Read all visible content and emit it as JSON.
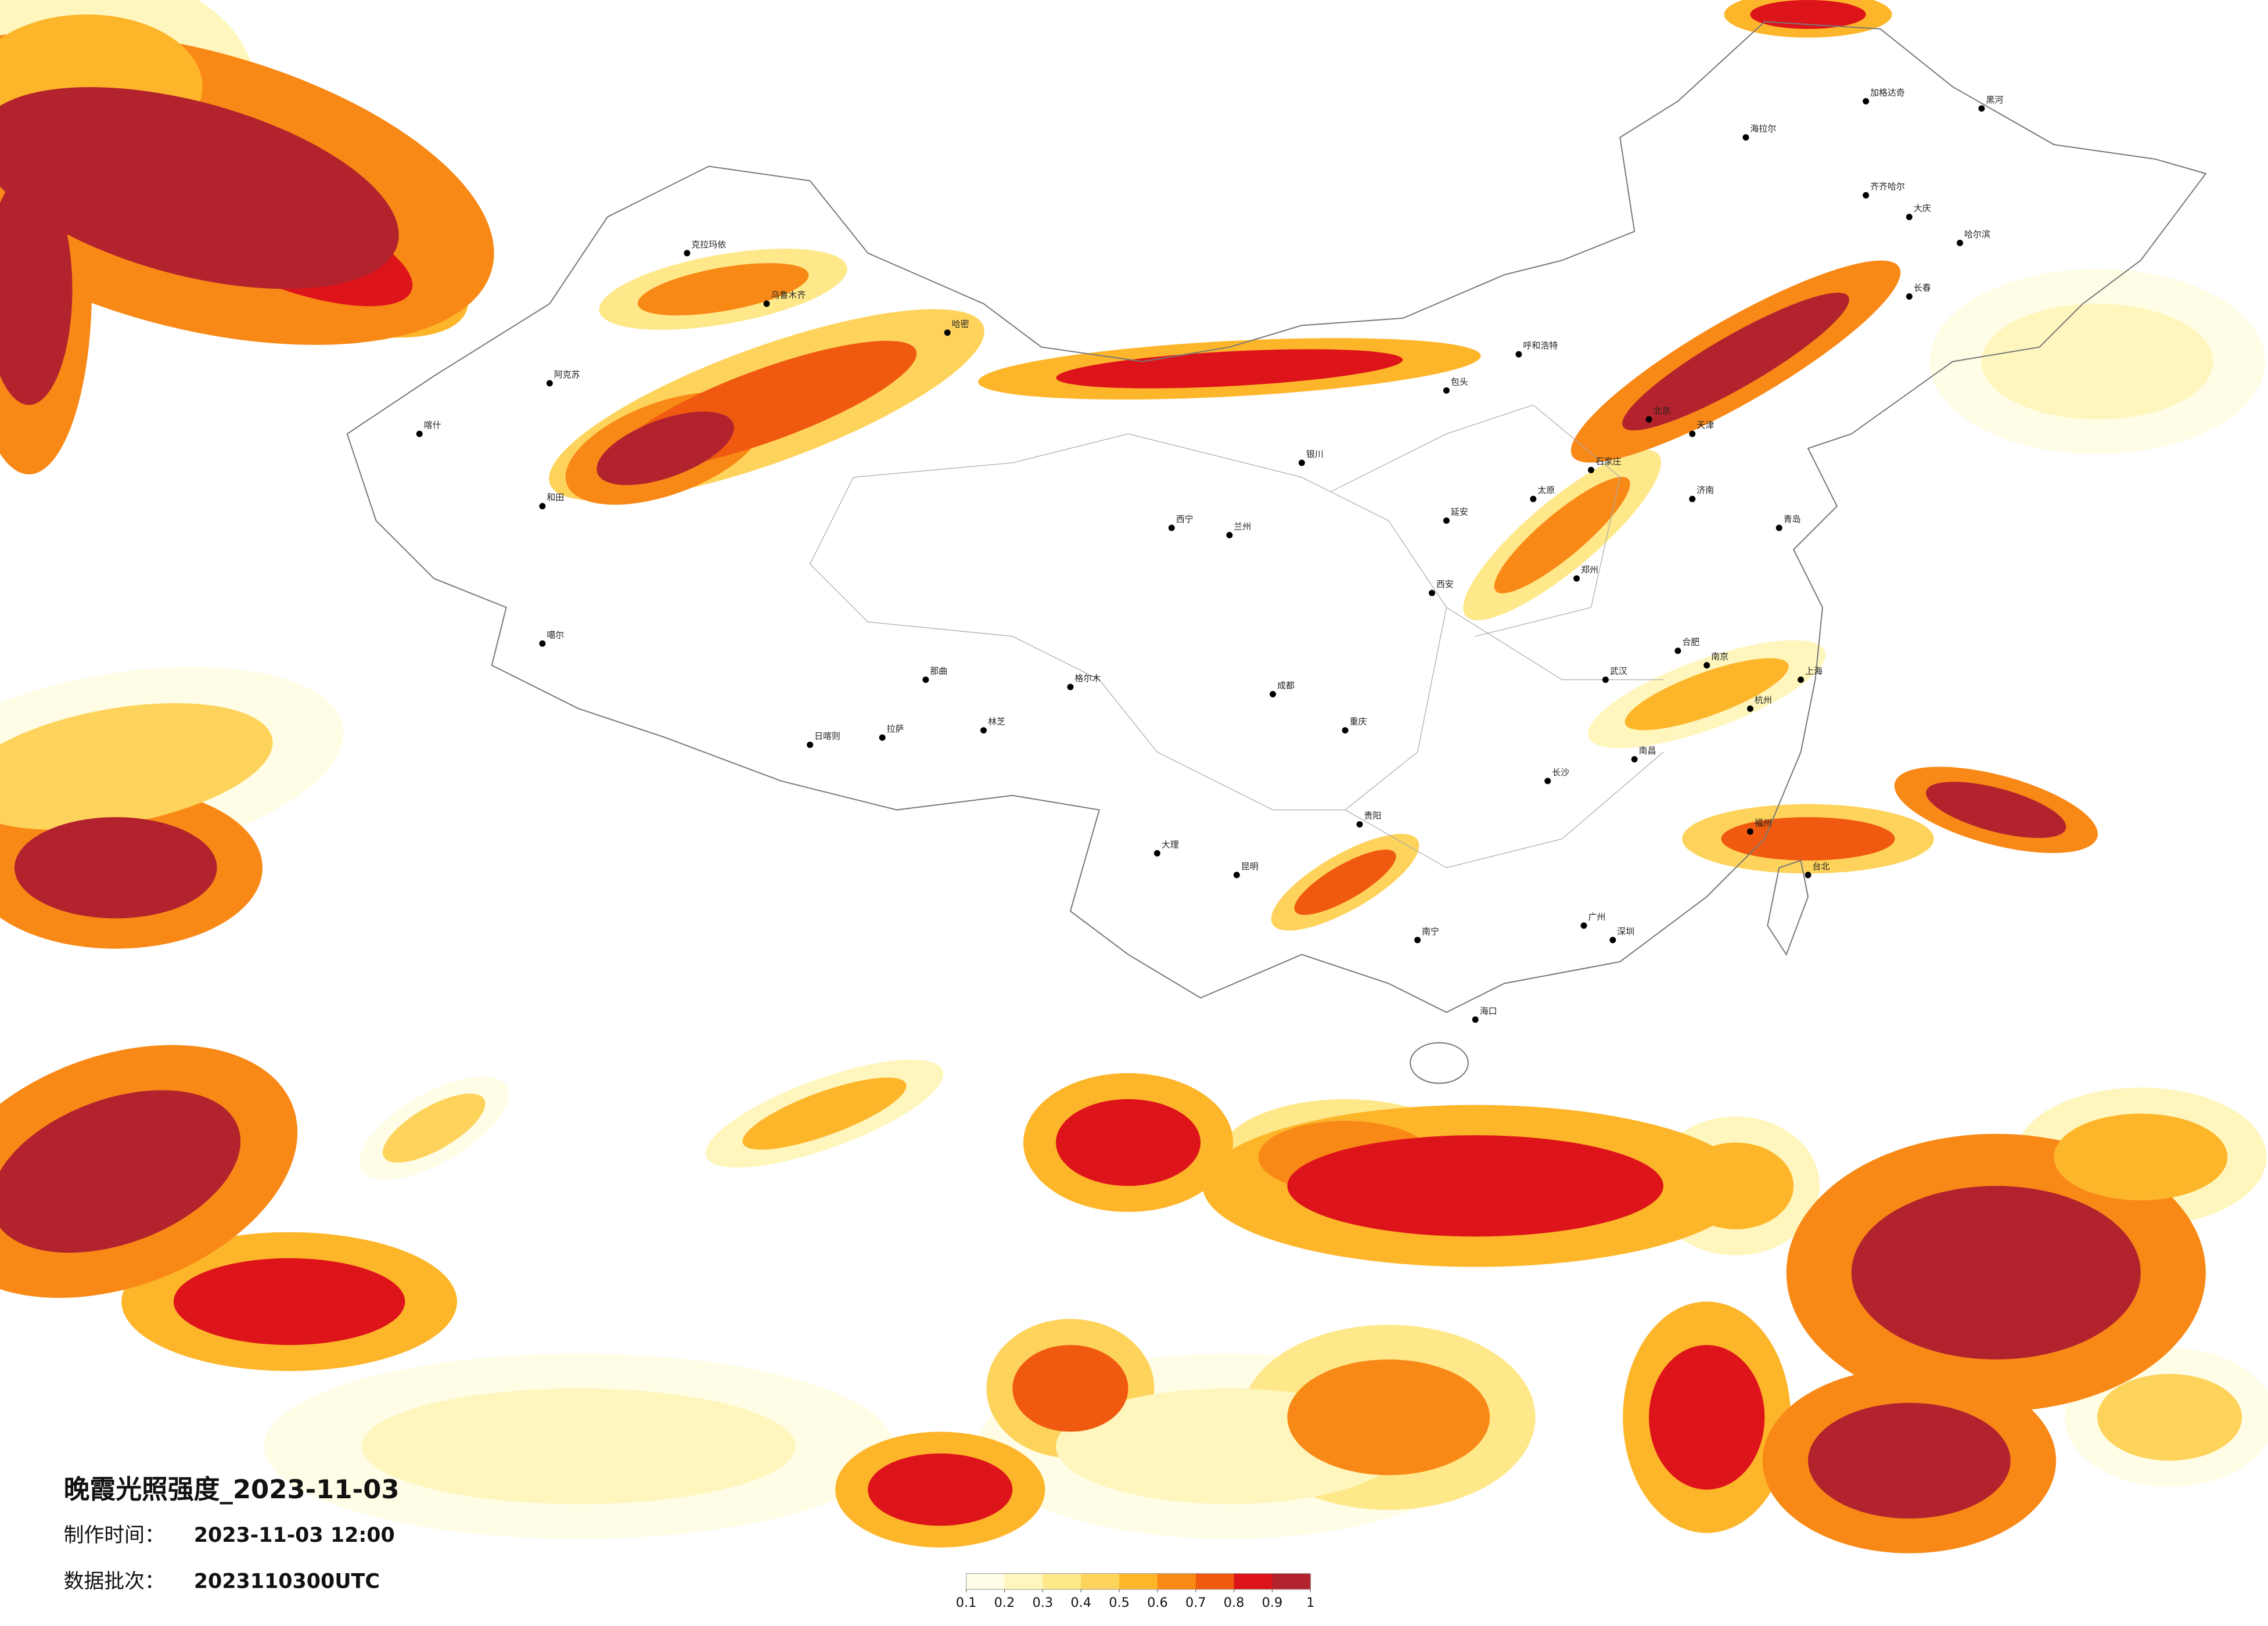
{
  "title": "晚霞光照强度_2023-11-03",
  "info": {
    "made_label": "制作时间：",
    "made_value": "2023-11-03 12:00",
    "batch_label": "数据批次：",
    "batch_value": "2023110300UTC"
  },
  "legend": {
    "colors": [
      "#fffde6",
      "#fff6bd",
      "#ffe88a",
      "#fed35b",
      "#fdb52a",
      "#f98917",
      "#f05a10",
      "#de141b",
      "#b3232d"
    ],
    "ticks": [
      0.1,
      0.2,
      0.3,
      0.4,
      0.5,
      0.6,
      0.7,
      0.8,
      0.9,
      1
    ]
  },
  "cities": [
    "海拉尔",
    "加格达奇",
    "黑河",
    "齐齐哈尔",
    "大庆",
    "哈尔滨",
    "长春",
    "北京",
    "天津",
    "石家庄",
    "太原",
    "呼和浩特",
    "包头",
    "银川",
    "兰州",
    "西宁",
    "拉萨",
    "日喀则",
    "西安",
    "郑州",
    "济南",
    "青岛",
    "南京",
    "上海",
    "杭州",
    "武汉",
    "长沙",
    "南昌",
    "福州",
    "台北",
    "广州",
    "深圳",
    "南宁",
    "海口",
    "昆明",
    "贵阳",
    "成都",
    "重庆",
    "大理",
    "乌鲁木齐",
    "克拉玛依",
    "阿克苏",
    "喀什",
    "和田",
    "哈密",
    "格尔木",
    "那曲",
    "林芝",
    "噶尔",
    "延安",
    "合肥"
  ]
}
